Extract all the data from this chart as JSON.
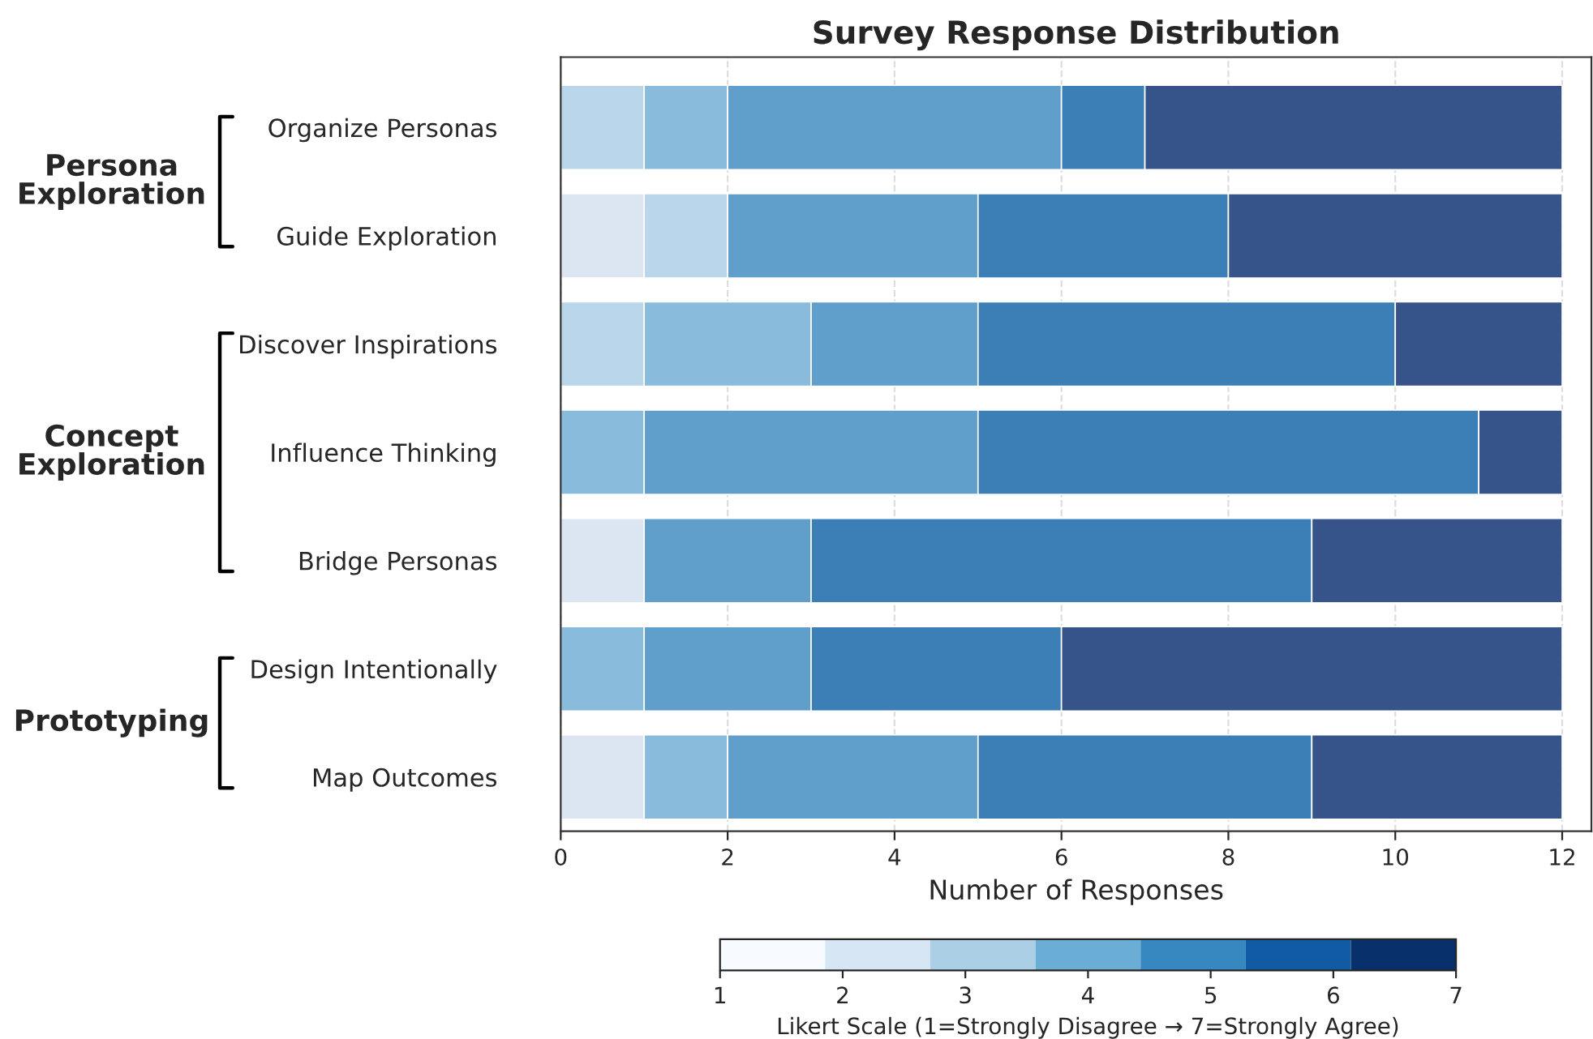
{
  "chart_data": {
    "type": "bar",
    "orientation": "horizontal",
    "stacked": true,
    "title": "Survey Response Distribution",
    "xlabel": "Number of Responses",
    "categories": [
      "Organize Personas",
      "Guide Exploration",
      "Discover Inspirations",
      "Influence Thinking",
      "Bridge Personas",
      "Design Intentionally",
      "Map Outcomes"
    ],
    "series": [
      {
        "color": "#dce6f2",
        "values": [
          null,
          1,
          null,
          null,
          1,
          null,
          1
        ]
      },
      {
        "color": "#b9d6ea",
        "values": [
          1,
          1,
          1,
          null,
          null,
          null,
          null
        ]
      },
      {
        "color": "#89bcdc",
        "values": [
          1,
          null,
          2,
          1,
          null,
          1,
          1
        ]
      },
      {
        "color": "#609fcb",
        "values": [
          4,
          3,
          2,
          4,
          2,
          2,
          3
        ]
      },
      {
        "color": "#3b7fb6",
        "values": [
          1,
          3,
          5,
          6,
          6,
          3,
          4
        ]
      },
      {
        "color": "#36548a",
        "values": [
          5,
          4,
          2,
          1,
          3,
          6,
          3
        ]
      }
    ],
    "xlim": [
      0,
      12.35
    ],
    "xticks": [
      0,
      2,
      4,
      6,
      8,
      10,
      12
    ],
    "grid": "x",
    "clabel": "Likert Scale (1=Strongly Disagree → 7=Strongly Agree)",
    "clim": [
      1,
      7
    ],
    "cticks": [
      1,
      2,
      3,
      4,
      5,
      6,
      7
    ],
    "annotations": [
      "Persona\nExploration",
      "Concept\nExploration",
      "Prototyping"
    ]
  }
}
